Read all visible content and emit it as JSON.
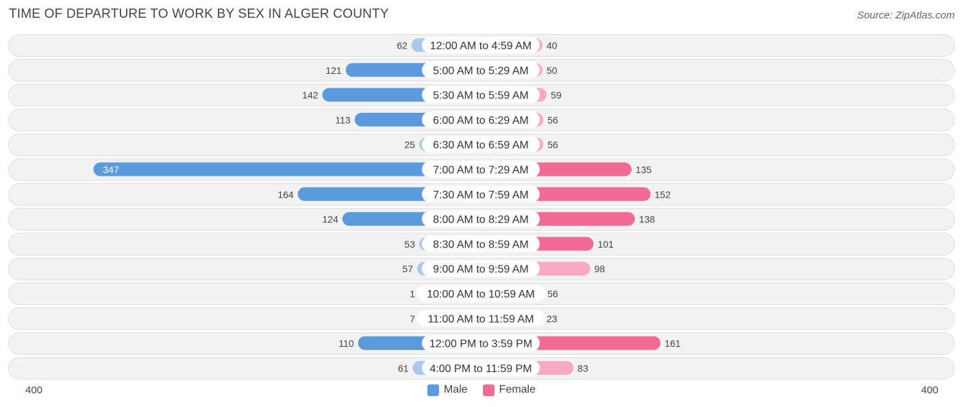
{
  "title": "TIME OF DEPARTURE TO WORK BY SEX IN ALGER COUNTY",
  "source": "Source: ZipAtlas.com",
  "axis": {
    "left_label": "400",
    "right_label": "400"
  },
  "legend": {
    "male_label": "Male",
    "female_label": "Female"
  },
  "colors": {
    "male_full": "#5b9bdb",
    "male_light": "#a9c8ec",
    "female_full": "#f26b97",
    "female_light": "#f7aac3",
    "row_bg": "#f2f2f2",
    "row_border": "#dddddd"
  },
  "chart_data": {
    "type": "bar",
    "orientation": "horizontal-diverging",
    "title": "TIME OF DEPARTURE TO WORK BY SEX IN ALGER COUNTY",
    "xlim": [
      -400,
      400
    ],
    "categories": [
      "12:00 AM to 4:59 AM",
      "5:00 AM to 5:29 AM",
      "5:30 AM to 5:59 AM",
      "6:00 AM to 6:29 AM",
      "6:30 AM to 6:59 AM",
      "7:00 AM to 7:29 AM",
      "7:30 AM to 7:59 AM",
      "8:00 AM to 8:29 AM",
      "8:30 AM to 8:59 AM",
      "9:00 AM to 9:59 AM",
      "10:00 AM to 10:59 AM",
      "11:00 AM to 11:59 AM",
      "12:00 PM to 3:59 PM",
      "4:00 PM to 11:59 PM"
    ],
    "series": [
      {
        "name": "Male",
        "values": [
          62,
          121,
          142,
          113,
          25,
          347,
          164,
          124,
          53,
          57,
          1,
          7,
          110,
          61
        ]
      },
      {
        "name": "Female",
        "values": [
          40,
          50,
          59,
          56,
          56,
          135,
          152,
          138,
          101,
          98,
          56,
          23,
          161,
          83
        ]
      }
    ],
    "legend_position": "bottom-center"
  }
}
